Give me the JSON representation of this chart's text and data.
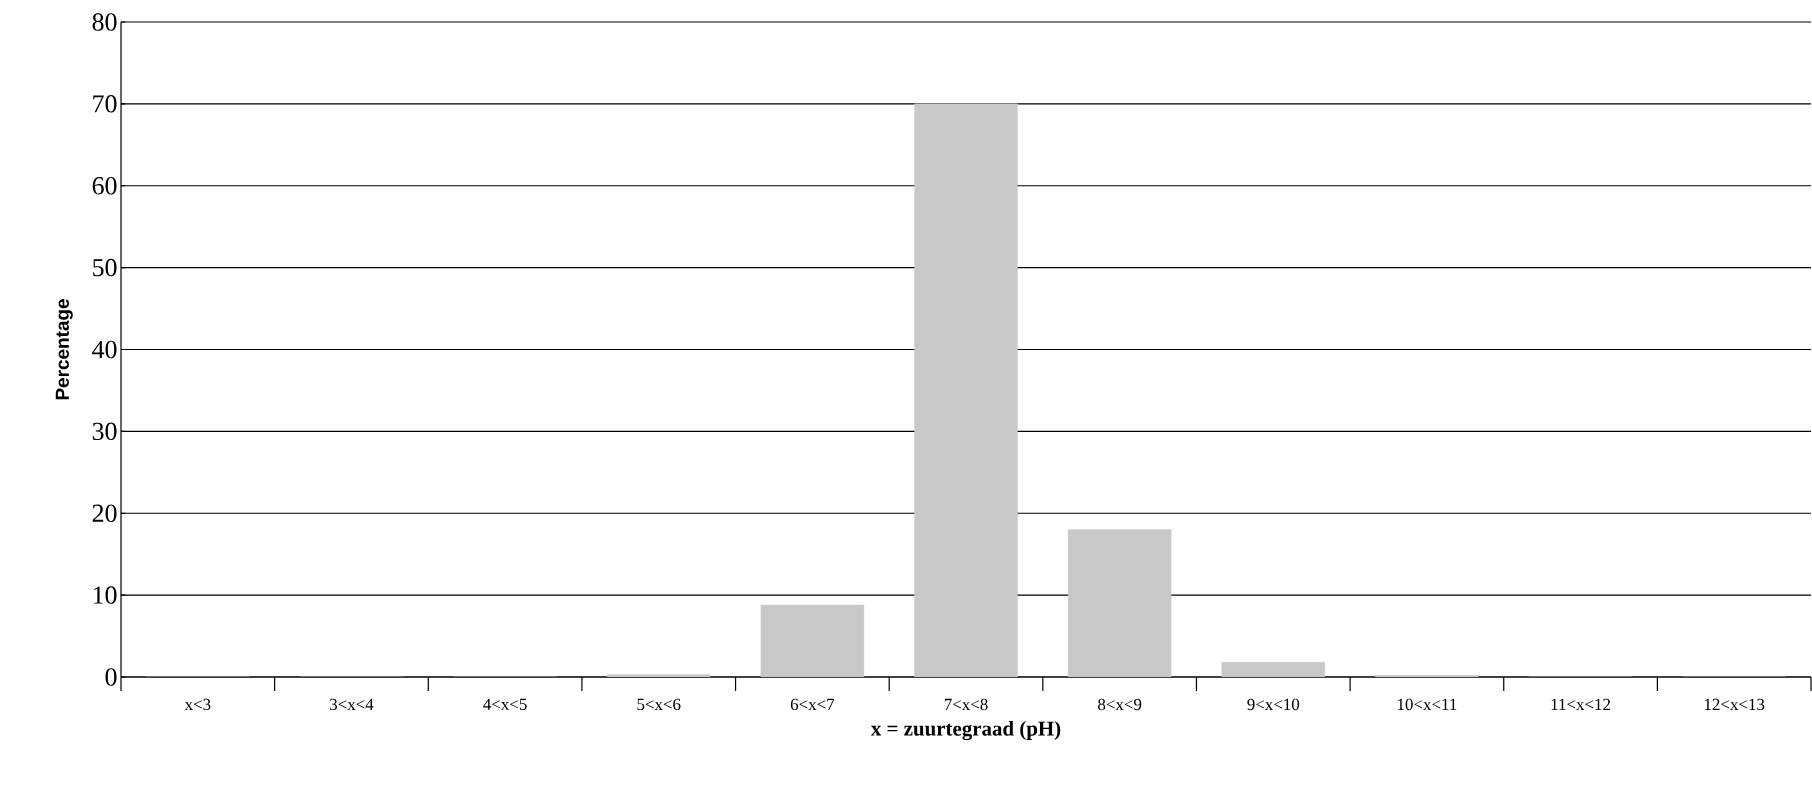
{
  "chart_data": {
    "type": "bar",
    "xlabel": "x = zuurtegraad (pH)",
    "ylabel": "Percentage",
    "categories": [
      "x<3",
      "3<x<4",
      "4<x<5",
      "5<x<6",
      "6<x<7",
      "7<x<8",
      "8<x<9",
      "9<x<10",
      "10<x<11",
      "11<x<12",
      "12<x<13"
    ],
    "values": [
      0,
      0,
      0,
      0.3,
      8.8,
      70,
      18,
      1.8,
      0.2,
      0,
      0
    ],
    "color": "#c8c8c8",
    "ylim": [
      0,
      80
    ],
    "yticks": [
      0,
      10,
      20,
      30,
      40,
      50,
      60,
      70,
      80
    ],
    "grid": "y"
  }
}
